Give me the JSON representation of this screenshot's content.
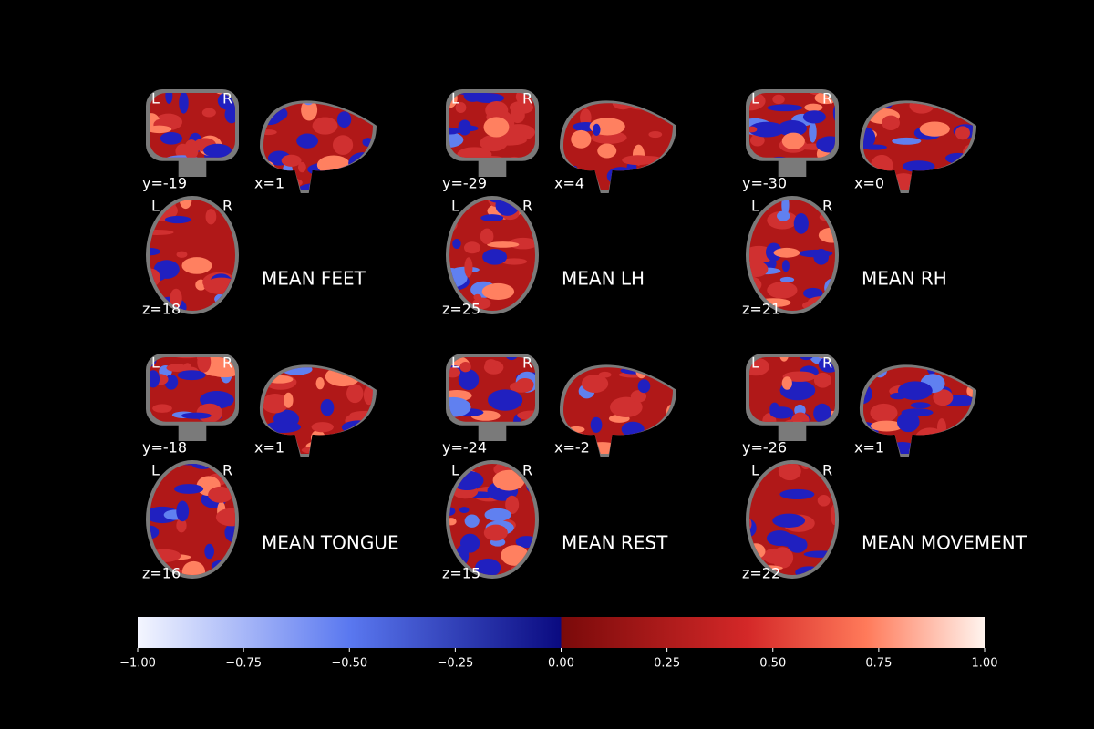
{
  "orientation": [
    "L",
    "R"
  ],
  "panels": [
    {
      "title": "MEAN FEET",
      "coronal": "y=-19",
      "sagittal": "x=1",
      "axial": "z=18"
    },
    {
      "title": "MEAN LH",
      "coronal": "y=-29",
      "sagittal": "x=4",
      "axial": "z=25"
    },
    {
      "title": "MEAN RH",
      "coronal": "y=-30",
      "sagittal": "x=0",
      "axial": "z=21"
    },
    {
      "title": "MEAN TONGUE",
      "coronal": "y=-18",
      "sagittal": "x=1",
      "axial": "z=16"
    },
    {
      "title": "MEAN REST",
      "coronal": "y=-24",
      "sagittal": "x=-2",
      "axial": "z=15"
    },
    {
      "title": "MEAN MOVEMENT",
      "coronal": "y=-26",
      "sagittal": "x=1",
      "axial": "z=22"
    }
  ],
  "colorbar": {
    "xlim": [
      -1,
      1
    ],
    "xticks": [
      {
        "value": -1,
        "label": "−1.00"
      },
      {
        "value": -0.75,
        "label": "−0.75"
      },
      {
        "value": -0.5,
        "label": "−0.50"
      },
      {
        "value": -0.25,
        "label": "−0.25"
      },
      {
        "value": 0,
        "label": "0.00"
      },
      {
        "value": 0.25,
        "label": "0.25"
      },
      {
        "value": 0.5,
        "label": "0.50"
      },
      {
        "value": 0.75,
        "label": "0.75"
      },
      {
        "value": 1,
        "label": "1.00"
      }
    ]
  }
}
